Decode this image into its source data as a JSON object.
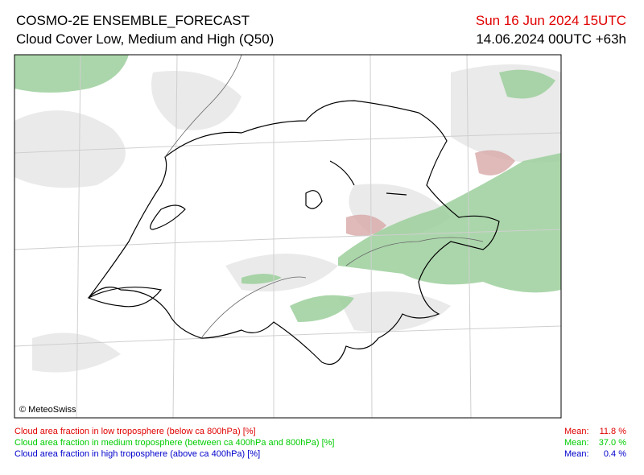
{
  "header": {
    "title": "COSMO-2E ENSEMBLE_FORECAST",
    "subtitle": "Cloud Cover Low, Medium and High (Q50)",
    "valid_time": "Sun 16 Jun 2024 15UTC",
    "run": "14.06.2024 00UTC +63h"
  },
  "map": {
    "copyright": "© MeteoSwiss"
  },
  "legend": [
    {
      "label": "Cloud area fraction in low troposphere (below ca 800hPa) [%]",
      "mean_label": "Mean:",
      "mean": "11.8 %"
    },
    {
      "label": "Cloud area fraction in medium troposphere (between ca 400hPa and 800hPa) [%]",
      "mean_label": "Mean:",
      "mean": "37.0 %"
    },
    {
      "label": "Cloud area fraction in high troposphere (above ca 400hPa) [%]",
      "mean_label": "Mean:",
      "mean": "0.4 %"
    }
  ]
}
